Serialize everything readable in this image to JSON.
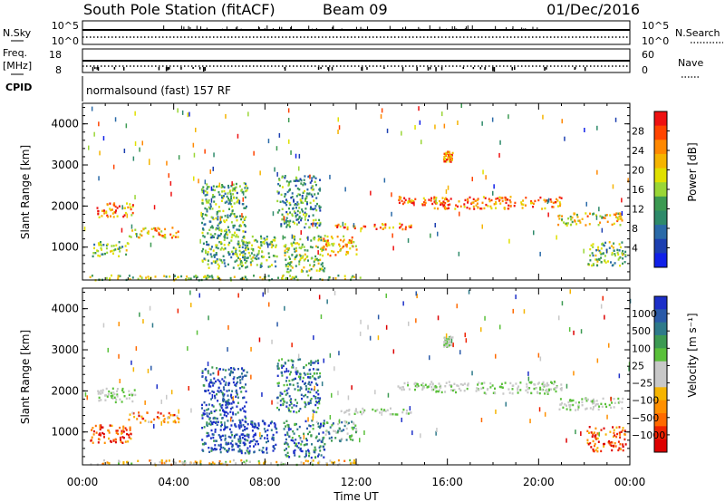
{
  "header": {
    "station": "South Pole Station (fitACF)",
    "beam": "Beam 09",
    "date": "01/Dec/2016"
  },
  "strip": {
    "nsky_label": "N.Sky",
    "nsky_ticks": [
      "10^5",
      "10^0"
    ],
    "nsearch_label": "N.Search",
    "nsearch_ticks": [
      "10^5",
      "10^0"
    ],
    "freq_label": "Freq.",
    "freq_unit": "[MHz]",
    "freq_ticks": [
      "18",
      "8"
    ],
    "nave_label": "Nave",
    "nave_ticks": [
      "60",
      "0"
    ],
    "cpid_label": "CPID",
    "cpid_text": "normalsound (fast) 157 RF"
  },
  "chart_data": [
    {
      "type": "heatmap",
      "panel": "power",
      "ylabel": "Slant Range [km]",
      "xlabel": "",
      "ylim": [
        200,
        4500
      ],
      "yticks": [
        "1000",
        "2000",
        "3000",
        "4000"
      ],
      "xlim_hours": [
        0,
        24
      ],
      "colorbar_label": "Power [dB]",
      "colorbar_ticks": [
        "28",
        "24",
        "20",
        "16",
        "12",
        "8",
        "4"
      ],
      "colorbar_colors": [
        "#ee1111",
        "#ff4400",
        "#ff8800",
        "#f5b400",
        "#e0e000",
        "#9ad636",
        "#3c9a52",
        "#2e8a6a",
        "#2a6aa8",
        "#1c3fb0",
        "#1020e8"
      ],
      "regions": [
        {
          "t0": 0.3,
          "t1": 12.2,
          "r0": 220,
          "r1": 340,
          "level": 0.5
        },
        {
          "t0": 0.4,
          "t1": 2.0,
          "r0": 800,
          "r1": 1150,
          "level": 0.55
        },
        {
          "t0": 0.6,
          "t1": 2.3,
          "r0": 1750,
          "r1": 2100,
          "level": 0.25
        },
        {
          "t0": 2.0,
          "t1": 4.2,
          "r0": 1250,
          "r1": 1500,
          "level": 0.3
        },
        {
          "t0": 5.2,
          "t1": 7.2,
          "r0": 500,
          "r1": 2600,
          "level": 0.6
        },
        {
          "t0": 6.8,
          "t1": 8.5,
          "r0": 500,
          "r1": 1300,
          "level": 0.55
        },
        {
          "t0": 8.5,
          "t1": 10.4,
          "r0": 1500,
          "r1": 2800,
          "level": 0.65
        },
        {
          "t0": 8.8,
          "t1": 10.6,
          "r0": 400,
          "r1": 1300,
          "level": 0.5
        },
        {
          "t0": 10.5,
          "t1": 12.0,
          "r0": 800,
          "r1": 1300,
          "level": 0.3
        },
        {
          "t0": 11.0,
          "t1": 14.5,
          "r0": 1450,
          "r1": 1600,
          "level": 0.2
        },
        {
          "t0": 13.8,
          "t1": 15.5,
          "r0": 2050,
          "r1": 2250,
          "level": 0.2
        },
        {
          "t0": 15.4,
          "t1": 21.0,
          "r0": 1950,
          "r1": 2250,
          "level": 0.2
        },
        {
          "t0": 15.8,
          "t1": 16.2,
          "r0": 3100,
          "r1": 3350,
          "level": 0.2
        },
        {
          "t0": 20.8,
          "t1": 23.7,
          "r0": 1550,
          "r1": 1850,
          "level": 0.4
        },
        {
          "t0": 22.1,
          "t1": 23.8,
          "r0": 550,
          "r1": 1150,
          "level": 0.55
        }
      ]
    },
    {
      "type": "heatmap",
      "panel": "velocity",
      "ylabel": "Slant Range [km]",
      "xlabel": "Time UT",
      "ylim": [
        200,
        4500
      ],
      "yticks": [
        "1000",
        "2000",
        "3000",
        "4000"
      ],
      "xticks": [
        "00:00",
        "04:00",
        "08:00",
        "12:00",
        "16:00",
        "20:00",
        "00:00"
      ],
      "xlim_hours": [
        0,
        24
      ],
      "colorbar_label": "Velocity [m s⁻¹]",
      "colorbar_ticks": [
        "1000",
        "500",
        "100",
        "25",
        "−25",
        "−100",
        "−500",
        "−1000"
      ],
      "colorbar_colors": [
        "#1c2fc8",
        "#2a5aa8",
        "#2e7a8a",
        "#3c9a52",
        "#5ac03a",
        "#c8c8c8",
        "#c8c8c8",
        "#f5b400",
        "#ff9000",
        "#ff6a00",
        "#ee2200",
        "#dd0000"
      ],
      "regions": [
        {
          "t0": 0.3,
          "t1": 12.2,
          "r0": 220,
          "r1": 340,
          "level": 0.55
        },
        {
          "t0": 0.3,
          "t1": 2.1,
          "r0": 750,
          "r1": 1200,
          "level": 0.85
        },
        {
          "t0": 0.6,
          "t1": 2.3,
          "r0": 1750,
          "r1": 2100,
          "level": 0.45
        },
        {
          "t0": 2.0,
          "t1": 4.2,
          "r0": 1250,
          "r1": 1500,
          "level": 0.75
        },
        {
          "t0": 5.2,
          "t1": 7.2,
          "r0": 500,
          "r1": 2600,
          "level": 0.1
        },
        {
          "t0": 6.8,
          "t1": 8.5,
          "r0": 500,
          "r1": 1300,
          "level": 0.05
        },
        {
          "t0": 8.5,
          "t1": 10.4,
          "r0": 1500,
          "r1": 2800,
          "level": 0.2
        },
        {
          "t0": 8.8,
          "t1": 10.6,
          "r0": 400,
          "r1": 1300,
          "level": 0.2
        },
        {
          "t0": 10.5,
          "t1": 12.0,
          "r0": 800,
          "r1": 1300,
          "level": 0.3
        },
        {
          "t0": 11.0,
          "t1": 14.5,
          "r0": 1450,
          "r1": 1600,
          "level": 0.45
        },
        {
          "t0": 13.8,
          "t1": 15.5,
          "r0": 2050,
          "r1": 2250,
          "level": 0.45
        },
        {
          "t0": 15.4,
          "t1": 21.0,
          "r0": 1950,
          "r1": 2250,
          "level": 0.45
        },
        {
          "t0": 15.8,
          "t1": 16.2,
          "r0": 3100,
          "r1": 3350,
          "level": 0.45
        },
        {
          "t0": 20.8,
          "t1": 23.7,
          "r0": 1550,
          "r1": 1850,
          "level": 0.45
        },
        {
          "t0": 22.1,
          "t1": 23.8,
          "r0": 550,
          "r1": 1150,
          "level": 0.85
        }
      ]
    }
  ]
}
